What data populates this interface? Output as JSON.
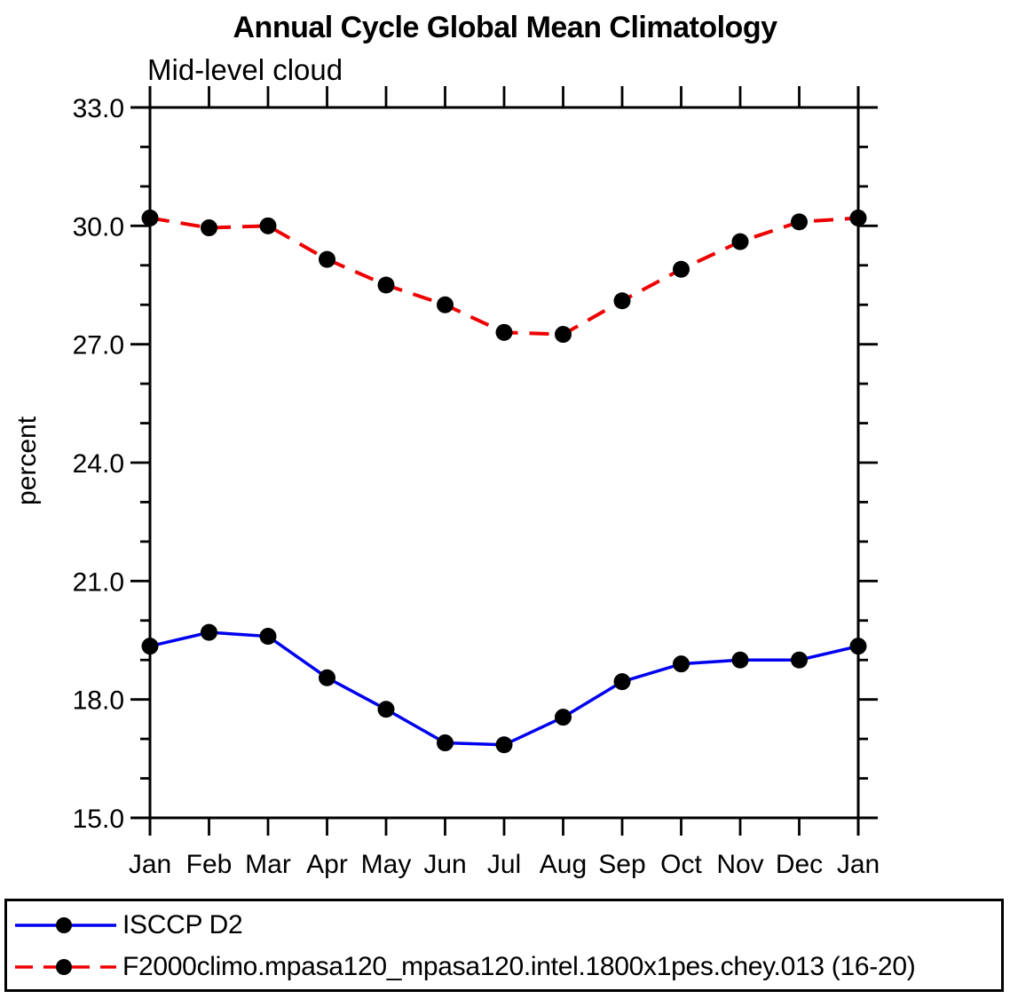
{
  "page": {
    "title": "Annual Cycle Global Mean Climatology",
    "subtitle": "Mid-level cloud"
  },
  "chart_data": {
    "type": "line",
    "title": "Annual Cycle Global Mean Climatology",
    "subtitle": "Mid-level cloud",
    "ylabel": "percent",
    "categories": [
      "Jan",
      "Feb",
      "Mar",
      "Apr",
      "May",
      "Jun",
      "Jul",
      "Aug",
      "Sep",
      "Oct",
      "Nov",
      "Dec",
      "Jan"
    ],
    "ylim": [
      15.0,
      33.0
    ],
    "ytick_labels": [
      "15.0",
      "18.0",
      "21.0",
      "24.0",
      "27.0",
      "30.0",
      "33.0"
    ],
    "ytick_major_interval": 3.0,
    "ytick_minor_interval": 1.0,
    "grid": false,
    "legend_position": "bottom box, left-aligned",
    "axis_color": "#000000",
    "marker_color": "#000000",
    "series": [
      {
        "name": "ISCCP D2",
        "color": "#0000ee",
        "line_style": "solid",
        "marker": "filled-circle",
        "values": [
          19.35,
          19.7,
          19.6,
          18.55,
          17.75,
          16.9,
          16.85,
          17.55,
          18.45,
          18.9,
          19.0,
          19.0,
          19.35
        ]
      },
      {
        "name": "F2000climo.mpasa120_mpasa120.intel.1800x1pes.chey.013 (16-20)",
        "color": "#ee0000",
        "line_style": "dashed",
        "marker": "filled-circle",
        "values": [
          30.2,
          29.95,
          30.0,
          29.15,
          28.5,
          28.0,
          27.3,
          27.25,
          28.1,
          28.9,
          29.6,
          30.1,
          30.2
        ]
      }
    ]
  }
}
